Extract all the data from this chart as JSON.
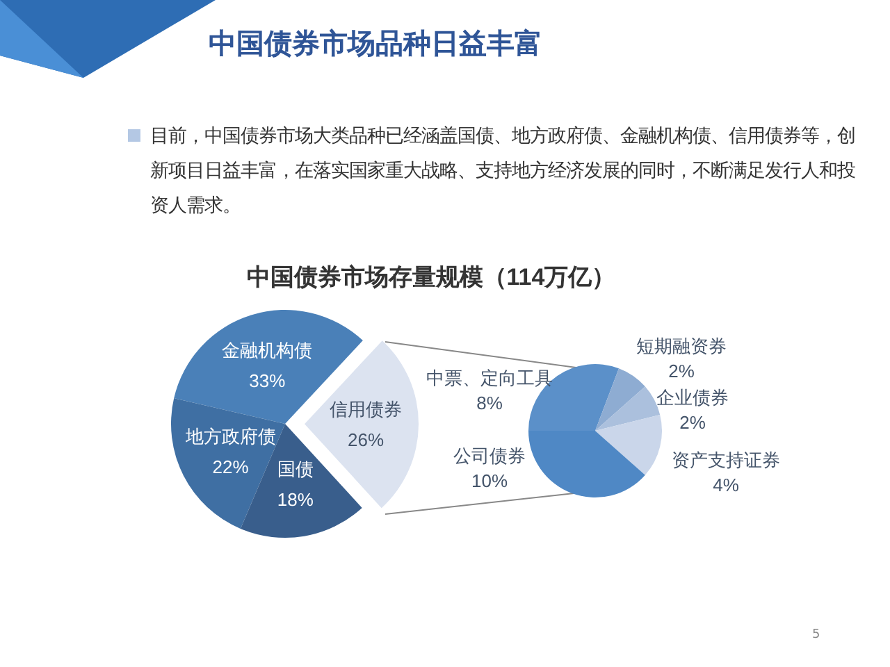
{
  "chart_data": [
    {
      "type": "pie",
      "title": "中国债券市场存量规模（114万亿）",
      "annotations": [
        "中国债券市场品种日益丰富",
        "目前，中国债券市场大类品种已经涵盖国债、地方政府债、金融机构债、信用债券等，创新项目日益丰富，在落实国家重大战略、支持地方经济发展的同时，不断满足发行人和投资人需求。",
        "5"
      ],
      "categories": [
        "金融机构债",
        "地方政府债",
        "国债",
        "信用债券"
      ],
      "values": [
        33,
        22,
        18,
        26
      ],
      "value_labels": [
        "33%",
        "22%",
        "18%",
        "26%"
      ],
      "colors": [
        "#4a80b8",
        "#3f6fa3",
        "#395e8c",
        "#dce3f0"
      ]
    },
    {
      "type": "pie",
      "categories": [
        "中票、定向工具",
        "短期融资券",
        "企业债券",
        "资产支持证券",
        "公司债券"
      ],
      "values": [
        8,
        2,
        2,
        4,
        10
      ],
      "value_labels": [
        "8%",
        "2%",
        "2%",
        "4%",
        "10%"
      ],
      "colors": [
        "#5b90c9",
        "#8eacd2",
        "#abc0dd",
        "#cad6ea",
        "#4f88c5"
      ]
    }
  ]
}
